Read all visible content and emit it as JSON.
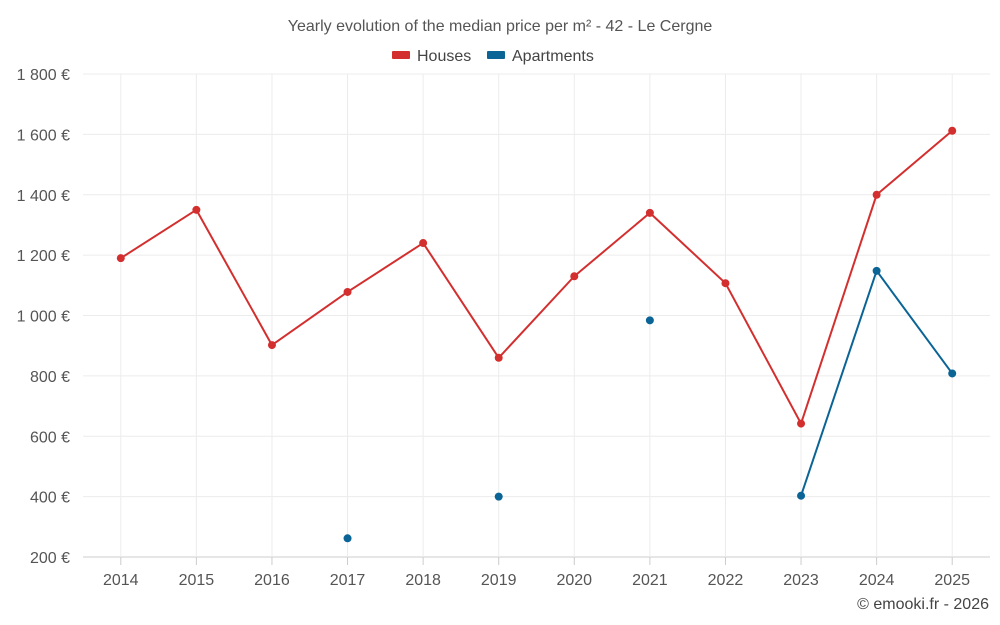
{
  "chart_data": {
    "type": "line",
    "title": "Yearly evolution of the median price per m² - 42 - Le Cergne",
    "categories": [
      "2014",
      "2015",
      "2016",
      "2017",
      "2018",
      "2019",
      "2020",
      "2021",
      "2022",
      "2023",
      "2024",
      "2025"
    ],
    "series": [
      {
        "name": "Houses",
        "color": "#d32f2f",
        "values": [
          1190,
          1350,
          902,
          1078,
          1240,
          860,
          1130,
          1340,
          1107,
          642,
          1400,
          1612
        ]
      },
      {
        "name": "Apartments",
        "color": "#0a6496",
        "values": [
          null,
          null,
          null,
          262,
          null,
          400,
          null,
          984,
          null,
          403,
          1148,
          808
        ]
      }
    ],
    "ylim": [
      200,
      1800
    ],
    "yticks": [
      200,
      400,
      600,
      800,
      1000,
      1200,
      1400,
      1600,
      1800
    ],
    "ytick_labels": [
      "200 €",
      "400 €",
      "600 €",
      "800 €",
      "1 000 €",
      "1 200 €",
      "1 400 €",
      "1 600 €",
      "1 800 €"
    ],
    "xlabel": "",
    "ylabel": "",
    "grid": true,
    "legend_position": "top-center"
  },
  "credit": "© emooki.fr - 2026"
}
